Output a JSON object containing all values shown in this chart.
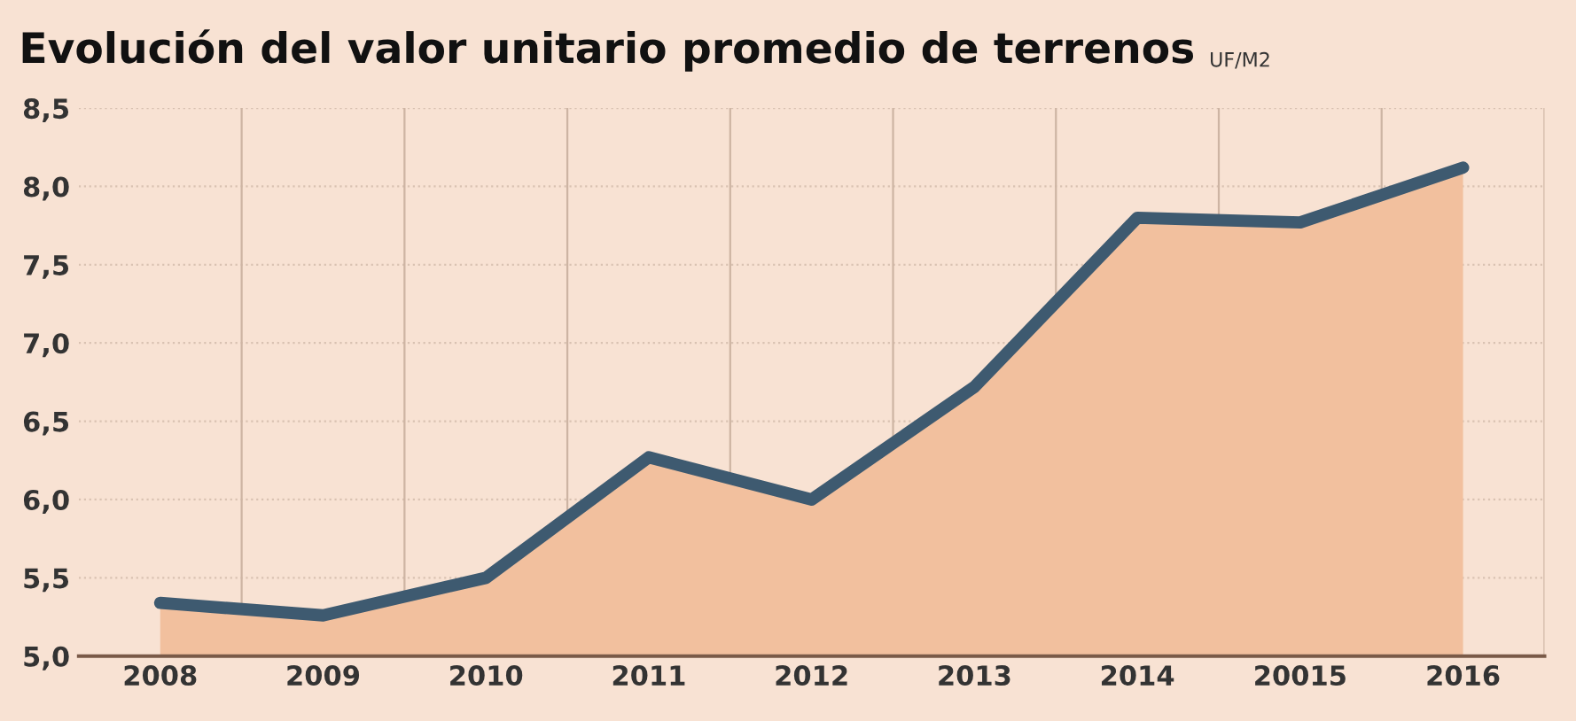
{
  "chart_data": {
    "type": "area",
    "title": "Evolución del valor unitario promedio de terrenos",
    "subtitle": "UF/M2",
    "categories": [
      "2008",
      "2009",
      "2010",
      "2011",
      "2012",
      "2013",
      "2014",
      "20015",
      "2016"
    ],
    "series": [
      {
        "color": "#f2c09e",
        "values": [
          5.34,
          5.26,
          5.5,
          6.27,
          6.0,
          6.72,
          7.8,
          7.77,
          8.12
        ]
      },
      {
        "type": "line",
        "color": "#3e5a70",
        "values": [
          5.34,
          5.26,
          5.5,
          6.27,
          6.0,
          6.72,
          7.8,
          7.77,
          8.12
        ]
      }
    ],
    "ylim": [
      5.0,
      8.5
    ],
    "yticks": [
      {
        "value": 5.0,
        "label": "5,0"
      },
      {
        "value": 5.5,
        "label": "5,5"
      },
      {
        "value": 6.0,
        "label": "6,0"
      },
      {
        "value": 6.5,
        "label": "6,5"
      },
      {
        "value": 7.0,
        "label": "7,0"
      },
      {
        "value": 7.5,
        "label": "7,5"
      },
      {
        "value": 8.0,
        "label": "8,0"
      },
      {
        "value": 8.5,
        "label": "8,5"
      }
    ],
    "grid": true
  }
}
